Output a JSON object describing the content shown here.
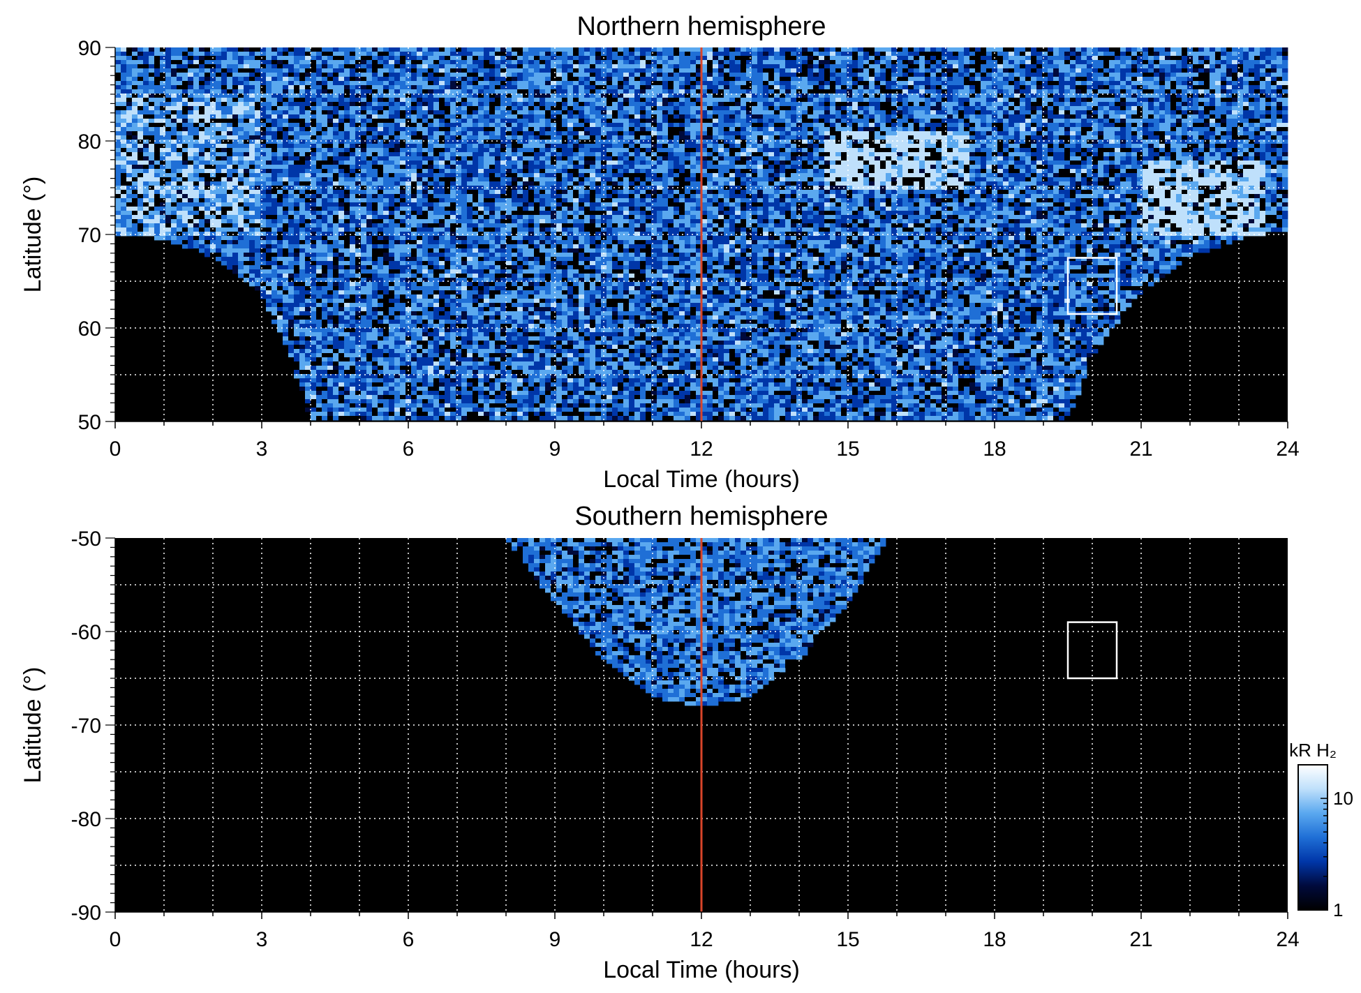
{
  "chart_data": [
    {
      "type": "heatmap",
      "title": "Northern hemisphere",
      "xlabel": "Local Time (hours)",
      "ylabel": "Latitude (°)",
      "xlim": [
        0,
        24
      ],
      "ylim": [
        50,
        90
      ],
      "x_ticks": [
        "0",
        "3",
        "6",
        "9",
        "12",
        "15",
        "18",
        "21",
        "24"
      ],
      "y_ticks": [
        "50",
        "60",
        "70",
        "80",
        "90"
      ],
      "grid": true,
      "vertical_line": {
        "x": 12,
        "color": "#d9452a"
      },
      "box": {
        "x0": 19.5,
        "x1": 20.5,
        "y0": 61.5,
        "y1": 67.5,
        "color": "#ffffff"
      },
      "coverage_boundary": [
        [
          0,
          70
        ],
        [
          1,
          69.5
        ],
        [
          2,
          67.5
        ],
        [
          3,
          63.5
        ],
        [
          3.5,
          58
        ],
        [
          4,
          50
        ],
        [
          19.5,
          50
        ],
        [
          20,
          57
        ],
        [
          21,
          64
        ],
        [
          22,
          67.5
        ],
        [
          23,
          69.5
        ],
        [
          24,
          70.5
        ]
      ],
      "bright_regions": [
        {
          "lt": [
            14.5,
            17.5
          ],
          "lat": [
            75,
            81
          ],
          "level": "high"
        },
        {
          "lt": [
            21,
            23.5
          ],
          "lat": [
            70,
            78
          ],
          "level": "high"
        },
        {
          "lt": [
            0,
            3
          ],
          "lat": [
            70,
            85
          ],
          "level": "medium"
        }
      ]
    },
    {
      "type": "heatmap",
      "title": "Southern hemisphere",
      "xlabel": "Local Time (hours)",
      "ylabel": "Latitude (°)",
      "xlim": [
        0,
        24
      ],
      "ylim": [
        -90,
        -50
      ],
      "x_ticks": [
        "0",
        "3",
        "6",
        "9",
        "12",
        "15",
        "18",
        "21",
        "24"
      ],
      "y_ticks": [
        "-50",
        "-60",
        "-70",
        "-80",
        "-90"
      ],
      "grid": true,
      "vertical_line": {
        "x": 12,
        "color": "#d9452a"
      },
      "box": {
        "x0": 19.5,
        "x1": 20.5,
        "y0": -65,
        "y1": -59,
        "color": "#ffffff"
      },
      "coverage_boundary": [
        [
          8,
          -50
        ],
        [
          9,
          -57
        ],
        [
          10,
          -63
        ],
        [
          11,
          -67
        ],
        [
          12,
          -68
        ],
        [
          13,
          -67
        ],
        [
          14,
          -63
        ],
        [
          15,
          -57
        ],
        [
          15.8,
          -50
        ]
      ]
    }
  ],
  "colorbar": {
    "label": "kR H₂",
    "scale": "log",
    "range": [
      1,
      20
    ],
    "ticks": [
      "1",
      "10"
    ],
    "colors": [
      "#000000",
      "#000a3c",
      "#0036a8",
      "#1f6fd6",
      "#5aa8ef",
      "#bfe0fb",
      "#ffffff"
    ]
  }
}
